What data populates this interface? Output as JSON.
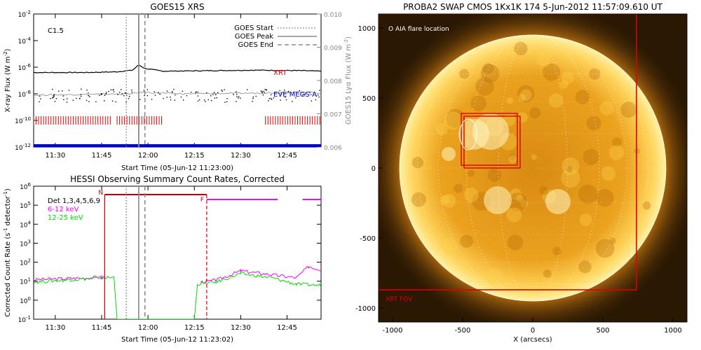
{
  "chart_data": [
    {
      "type": "line",
      "title": "GOES15 XRS",
      "flare_class": "C1.5",
      "xlabel": "Start Time (05-Jun-12 11:23:00)",
      "ylabel": "X-ray Flux (W m",
      "ylabel_sup": "-2",
      "ylabel_end": ")",
      "ylabel_right": "GOES15 Lyα Flux (W m",
      "ylabel_right_sup": "-2",
      "ylabel_right_end": ")",
      "yscale": "log",
      "ylim": [
        1e-12,
        0.01
      ],
      "ylim_right": [
        0.006,
        0.01
      ],
      "x_ticks": [
        "11:30",
        "11:45",
        "12:00",
        "12:15",
        "12:30",
        "12:45"
      ],
      "y_ticks": [
        {
          "value": 0.01,
          "base": "10",
          "exp": "-2"
        },
        {
          "value": 0.0001,
          "base": "10",
          "exp": "-4"
        },
        {
          "value": 1e-06,
          "base": "10",
          "exp": "-6"
        },
        {
          "value": 1e-08,
          "base": "10",
          "exp": "-8"
        },
        {
          "value": 1e-10,
          "base": "10",
          "exp": "-10"
        },
        {
          "value": 1e-12,
          "base": "10",
          "exp": "-12"
        }
      ],
      "y_ticks_right": [
        "0.010",
        "0.009",
        "0.008",
        "0.007",
        "0.006"
      ],
      "legend": [
        {
          "name": "GOES Start",
          "style": "dotted"
        },
        {
          "name": "GOES Peak",
          "style": "solid"
        },
        {
          "name": "GOES End",
          "style": "dashed"
        }
      ],
      "legend_position": "top-right",
      "labels": [
        {
          "text": "XRT",
          "color": "#e00000"
        },
        {
          "text": "EVE MEGS-A",
          "color": "#0000cc"
        }
      ],
      "vlines": [
        {
          "name": "GOES Start",
          "x": "11:53"
        },
        {
          "name": "GOES Peak",
          "x": "11:57"
        },
        {
          "name": "GOES End",
          "x": "11:59"
        }
      ],
      "series": [
        {
          "x": [
            "11:23",
            "11:40",
            "11:50",
            "11:55",
            "11:57",
            "11:59",
            "12:05",
            "12:20",
            "12:35",
            "12:50",
            "12:56"
          ],
          "values": [
            4e-07,
            4e-07,
            4.5e-07,
            6e-07,
            1.5e-06,
            8e-07,
            5e-07,
            5.5e-07,
            6e-07,
            5.5e-07,
            5e-07
          ],
          "color": "#000000"
        },
        {
          "x": [
            "11:23",
            "11:40",
            "11:55",
            "11:58",
            "12:10",
            "12:30",
            "12:50",
            "12:56"
          ],
          "values": [
            8e-09,
            9e-09,
            1e-08,
            1.3e-08,
            1e-08,
            1.1e-08,
            1.3e-08,
            1.2e-08
          ],
          "color": "#888888"
        }
      ],
      "xrt_observation_spans": [
        [
          "11:23",
          "11:48"
        ],
        [
          "11:50",
          "12:05"
        ],
        [
          "12:38",
          "12:56"
        ]
      ],
      "eve_coverage": [
        [
          "11:23",
          "12:56"
        ]
      ]
    },
    {
      "type": "line",
      "title": "HESSI Observing Summary Count Rates, Corrected",
      "xlabel": "Start Time (05-Jun-12 11:23:02)",
      "ylabel": "Corrected Count Rate (s",
      "ylabel_sup": "-1",
      "ylabel_mid": " detector",
      "ylabel_sup2": "-1",
      "ylabel_end": ")",
      "yscale": "log",
      "ylim": [
        0.1,
        1000000.0
      ],
      "x_ticks": [
        "11:30",
        "11:45",
        "12:00",
        "12:15",
        "12:30",
        "12:45"
      ],
      "y_ticks": [
        {
          "value": 1000000.0,
          "base": "10",
          "exp": "6"
        },
        {
          "value": 100000.0,
          "base": "10",
          "exp": "5"
        },
        {
          "value": 10000.0,
          "base": "10",
          "exp": "4"
        },
        {
          "value": 1000.0,
          "base": "10",
          "exp": "3"
        },
        {
          "value": 100.0,
          "base": "10",
          "exp": "2"
        },
        {
          "value": 10.0,
          "base": "10",
          "exp": "1"
        },
        {
          "value": 1.0,
          "base": "10",
          "exp": "0"
        },
        {
          "value": 0.1,
          "base": "10",
          "exp": "-1"
        }
      ],
      "legend": [
        {
          "name": "Det 1,3,4,5,6,9",
          "color": "#000000"
        },
        {
          "name": "6-12 keV",
          "color": "#ff00ff"
        },
        {
          "name": "12-25 keV",
          "color": "#00dd00"
        }
      ],
      "legend_position": "top-left",
      "flags": [
        {
          "text": "N",
          "x": "11:46"
        },
        {
          "text": "F",
          "x": "12:19"
        }
      ],
      "series": [
        {
          "name": "6-12 keV",
          "color": "#ff00ff",
          "x": [
            "11:23",
            "11:35",
            "11:45",
            "11:46",
            "12:15",
            "12:17",
            "12:22",
            "12:30",
            "12:40",
            "12:48",
            "12:52",
            "12:56"
          ],
          "values": [
            12,
            14,
            16,
            16,
            null,
            9,
            11,
            35,
            22,
            15,
            60,
            40
          ]
        },
        {
          "name": "12-25 keV",
          "color": "#00dd00",
          "x": [
            "11:23",
            "11:35",
            "11:49",
            "11:50",
            "12:15",
            "12:16",
            "12:22",
            "12:30",
            "12:40",
            "12:48",
            "12:56"
          ],
          "values": [
            9,
            12,
            16,
            0.1,
            0.1,
            7,
            9,
            25,
            15,
            7,
            6
          ]
        }
      ],
      "night_span": [
        "11:46",
        "12:19"
      ],
      "saa_segments": [
        [
          "12:19",
          "12:42"
        ],
        [
          "12:50",
          "12:56"
        ]
      ],
      "vlines": [
        {
          "name": "GOES Start",
          "x": "11:53"
        },
        {
          "name": "GOES Peak",
          "x": "11:57"
        },
        {
          "name": "GOES End",
          "x": "11:59"
        },
        {
          "name": "night start",
          "x": "11:46"
        },
        {
          "name": "night end",
          "x": "12:19"
        }
      ]
    },
    {
      "type": "image",
      "title": "PROBA2 SWAP CMOS 1Kx1K 174  5-Jun-2012 11:57:09.610 UT",
      "annotation": "O AIA flare location",
      "fov_label": "XRT FOV",
      "xlabel": "X (arcsecs)",
      "xlim": [
        -1100,
        1100
      ],
      "ylim": [
        -1100,
        1100
      ],
      "x_ticks": [
        "-1000",
        "-500",
        "0",
        "500",
        "1000"
      ],
      "y_ticks": [
        "1000",
        "500",
        "0",
        "-500",
        "-1000"
      ],
      "solar_radius_arcsec": 950,
      "xrt_fov": {
        "x": [
          -1100,
          740
        ],
        "y": [
          -870,
          1100
        ]
      },
      "flare_boxes": [
        {
          "x": [
            -510,
            -110
          ],
          "y": [
            20,
            390
          ]
        },
        {
          "x": [
            -490,
            -90
          ],
          "y": [
            0,
            370
          ]
        }
      ],
      "aia_flare_location": {
        "x": -460,
        "y": 240
      }
    }
  ],
  "colors": {
    "goes_long": "#000000",
    "goes_lya": "#888888",
    "xrt": "#e00000",
    "eve": "#0000cc",
    "magenta": "#ff00ff",
    "green": "#00dd00",
    "fov_red": "#e00000"
  }
}
